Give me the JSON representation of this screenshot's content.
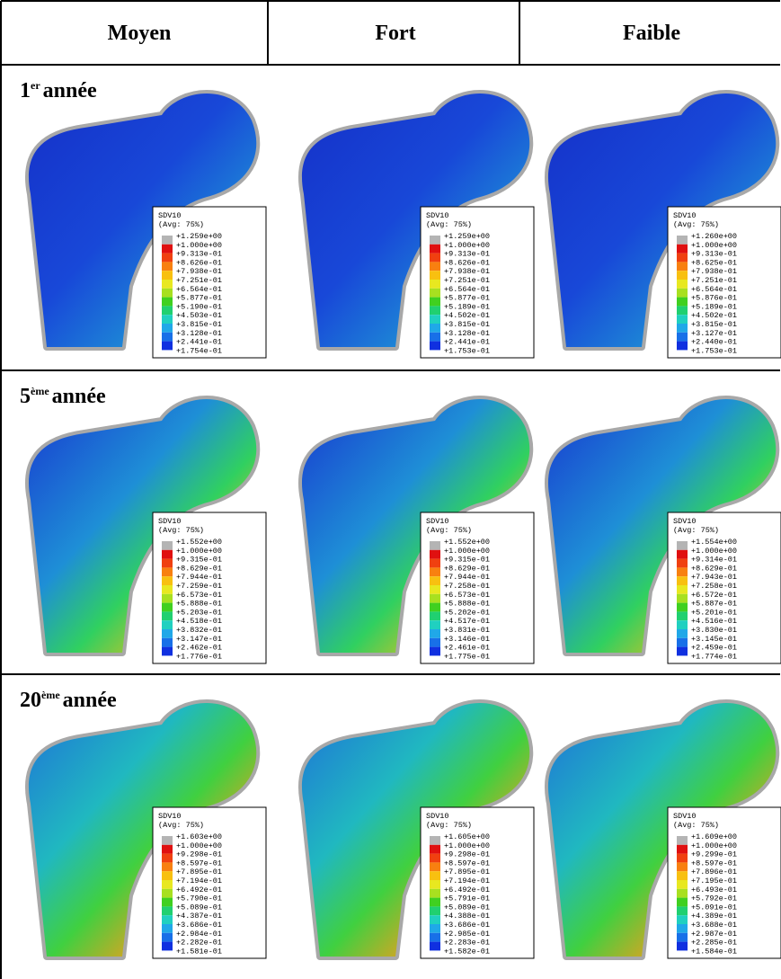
{
  "table": {
    "headers": [
      "Moyen",
      "Fort",
      "Faible"
    ],
    "rows": [
      {
        "label": {
          "number": "1",
          "sup": "er",
          "text": "année"
        },
        "cells": [
          {
            "title": "SDV10",
            "subtitle": "(Avg: 75%)",
            "levels": [
              "+1.259e+00",
              "+1.000e+00",
              "+9.313e-01",
              "+8.626e-01",
              "+7.938e-01",
              "+7.251e-01",
              "+6.564e-01",
              "+5.877e-01",
              "+5.190e-01",
              "+4.503e-01",
              "+3.815e-01",
              "+3.128e-01",
              "+2.441e-01",
              "+1.754e-01"
            ]
          },
          {
            "title": "SDV10",
            "subtitle": "(Avg: 75%)",
            "levels": [
              "+1.259e+00",
              "+1.000e+00",
              "+9.313e-01",
              "+8.626e-01",
              "+7.938e-01",
              "+7.251e-01",
              "+6.564e-01",
              "+5.877e-01",
              "+5.189e-01",
              "+4.502e-01",
              "+3.815e-01",
              "+3.128e-01",
              "+2.441e-01",
              "+1.753e-01"
            ]
          },
          {
            "title": "SDV10",
            "subtitle": "(Avg: 75%)",
            "levels": [
              "+1.260e+00",
              "+1.000e+00",
              "+9.313e-01",
              "+8.625e-01",
              "+7.938e-01",
              "+7.251e-01",
              "+6.564e-01",
              "+5.876e-01",
              "+5.189e-01",
              "+4.502e-01",
              "+3.815e-01",
              "+3.127e-01",
              "+2.440e-01",
              "+1.753e-01"
            ]
          }
        ]
      },
      {
        "label": {
          "number": "5",
          "sup": "ème",
          "text": "année"
        },
        "cells": [
          {
            "title": "SDV10",
            "subtitle": "(Avg: 75%)",
            "levels": [
              "+1.552e+00",
              "+1.000e+00",
              "+9.315e-01",
              "+8.629e-01",
              "+7.944e-01",
              "+7.259e-01",
              "+6.573e-01",
              "+5.888e-01",
              "+5.203e-01",
              "+4.518e-01",
              "+3.832e-01",
              "+3.147e-01",
              "+2.462e-01",
              "+1.776e-01"
            ]
          },
          {
            "title": "SDV10",
            "subtitle": "(Avg: 75%)",
            "levels": [
              "+1.552e+00",
              "+1.000e+00",
              "+9.315e-01",
              "+8.629e-01",
              "+7.944e-01",
              "+7.258e-01",
              "+6.573e-01",
              "+5.888e-01",
              "+5.202e-01",
              "+4.517e-01",
              "+3.831e-01",
              "+3.146e-01",
              "+2.461e-01",
              "+1.775e-01"
            ]
          },
          {
            "title": "SDV10",
            "subtitle": "(Avg: 75%)",
            "levels": [
              "+1.554e+00",
              "+1.000e+00",
              "+9.314e-01",
              "+8.629e-01",
              "+7.943e-01",
              "+7.258e-01",
              "+6.572e-01",
              "+5.887e-01",
              "+5.201e-01",
              "+4.516e-01",
              "+3.830e-01",
              "+3.145e-01",
              "+2.459e-01",
              "+1.774e-01"
            ]
          }
        ]
      },
      {
        "label": {
          "number": "20",
          "sup": "ème",
          "text": "année"
        },
        "cells": [
          {
            "title": "SDV10",
            "subtitle": "(Avg: 75%)",
            "levels": [
              "+1.603e+00",
              "+1.000e+00",
              "+9.298e-01",
              "+8.597e-01",
              "+7.895e-01",
              "+7.194e-01",
              "+6.492e-01",
              "+5.790e-01",
              "+5.089e-01",
              "+4.387e-01",
              "+3.686e-01",
              "+2.984e-01",
              "+2.282e-01",
              "+1.581e-01"
            ]
          },
          {
            "title": "SDV10",
            "subtitle": "(Avg: 75%)",
            "levels": [
              "+1.605e+00",
              "+1.000e+00",
              "+9.298e-01",
              "+8.597e-01",
              "+7.895e-01",
              "+7.194e-01",
              "+6.492e-01",
              "+5.791e-01",
              "+5.089e-01",
              "+4.388e-01",
              "+3.686e-01",
              "+2.985e-01",
              "+2.283e-01",
              "+1.582e-01"
            ]
          },
          {
            "title": "SDV10",
            "subtitle": "(Avg: 75%)",
            "levels": [
              "+1.609e+00",
              "+1.000e+00",
              "+9.299e-01",
              "+8.597e-01",
              "+7.896e-01",
              "+7.195e-01",
              "+6.493e-01",
              "+5.792e-01",
              "+5.091e-01",
              "+4.389e-01",
              "+3.688e-01",
              "+2.987e-01",
              "+2.285e-01",
              "+1.584e-01"
            ]
          }
        ]
      }
    ]
  }
}
